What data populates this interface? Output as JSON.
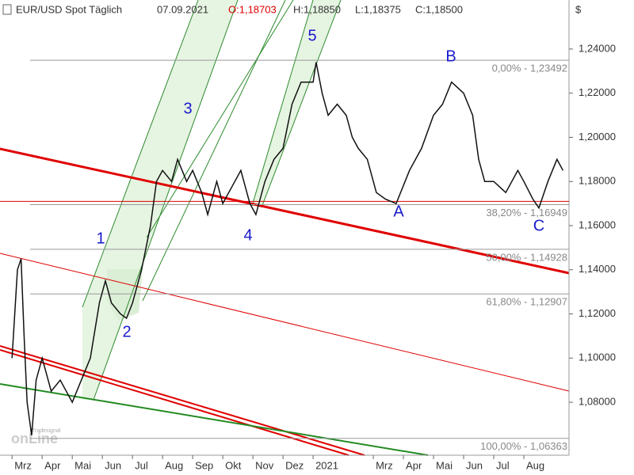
{
  "chart_data": {
    "type": "line",
    "title_parts": [
      "EUR/USD Spot Täglich",
      "07.09.2021",
      "O:1,18703",
      "H:1,18850",
      "L:1,18375",
      "C:1,18500"
    ],
    "currency": "$",
    "x": [
      0,
      0.18,
      0.3,
      0.4,
      0.5,
      0.65,
      0.8,
      1.0,
      1.3,
      1.6,
      2.0,
      2.3,
      2.6,
      2.9,
      3.1,
      3.3,
      3.6,
      3.8,
      4.0,
      4.3,
      4.6,
      4.8,
      5.0,
      5.3,
      5.5,
      5.8,
      6.0,
      6.3,
      6.5,
      6.8,
      7.0,
      7.4,
      7.6,
      7.9,
      8.1,
      8.4,
      8.7,
      9.0,
      9.3,
      9.6,
      10.0,
      10.1,
      10.3,
      10.5,
      10.8,
      11.1,
      11.3,
      11.5,
      11.8,
      12.1,
      12.4,
      12.76,
      13.2,
      13.6,
      14.0,
      14.3,
      14.6,
      15.0,
      15.3,
      15.5,
      15.7,
      16.0,
      16.4,
      16.8,
      17.0,
      17.3,
      17.5,
      17.8,
      18.1,
      18.3
    ],
    "series": [
      {
        "name": "EUR/USD",
        "color": "#111111",
        "values": [
          1.1,
          1.14,
          1.145,
          1.11,
          1.08,
          1.065,
          1.09,
          1.1,
          1.085,
          1.09,
          1.08,
          1.09,
          1.1,
          1.125,
          1.135,
          1.125,
          1.12,
          1.118,
          1.125,
          1.14,
          1.16,
          1.18,
          1.185,
          1.18,
          1.19,
          1.18,
          1.185,
          1.175,
          1.165,
          1.18,
          1.17,
          1.18,
          1.185,
          1.17,
          1.165,
          1.18,
          1.19,
          1.195,
          1.215,
          1.225,
          1.225,
          1.234,
          1.22,
          1.21,
          1.215,
          1.21,
          1.2,
          1.195,
          1.19,
          1.175,
          1.172,
          1.17,
          1.185,
          1.195,
          1.21,
          1.215,
          1.225,
          1.22,
          1.21,
          1.19,
          1.18,
          1.18,
          1.175,
          1.185,
          1.18,
          1.172,
          1.168,
          1.18,
          1.19,
          1.185
        ]
      }
    ],
    "xlim": [
      -0.4,
      18.5
    ],
    "xticks": [
      {
        "value": 0,
        "label": "Mrz"
      },
      {
        "value": 1,
        "label": "Apr"
      },
      {
        "value": 2,
        "label": "Mai"
      },
      {
        "value": 3,
        "label": "Jun"
      },
      {
        "value": 4,
        "label": "Jul"
      },
      {
        "value": 5,
        "label": "Aug"
      },
      {
        "value": 6,
        "label": "Sep"
      },
      {
        "value": 7,
        "label": "Okt"
      },
      {
        "value": 8,
        "label": "Nov"
      },
      {
        "value": 9,
        "label": "Dez"
      },
      {
        "value": 10,
        "label": "2021"
      },
      {
        "value": 12,
        "label": "Mrz"
      },
      {
        "value": 13,
        "label": "Apr"
      },
      {
        "value": 14,
        "label": "Mai"
      },
      {
        "value": 15,
        "label": "Jun"
      },
      {
        "value": 16,
        "label": "Jul"
      },
      {
        "value": 17,
        "label": "Aug"
      }
    ],
    "ylim": [
      1.056,
      1.2622
    ],
    "yticks": [
      {
        "value": 1.08,
        "label": "1,08000"
      },
      {
        "value": 1.1,
        "label": "1,10000"
      },
      {
        "value": 1.12,
        "label": "1,12000"
      },
      {
        "value": 1.14,
        "label": "1,14000"
      },
      {
        "value": 1.16,
        "label": "1,16000"
      },
      {
        "value": 1.18,
        "label": "1,18000"
      },
      {
        "value": 1.2,
        "label": "1,20000"
      },
      {
        "value": 1.22,
        "label": "1,22000"
      },
      {
        "value": 1.24,
        "label": "1,24000"
      }
    ],
    "fib_levels": [
      {
        "value": 1.23492,
        "label": "0,00% - 1,23492"
      },
      {
        "value": 1.16949,
        "label": "38,20% - 1,16949"
      },
      {
        "value": 1.14928,
        "label": "50,00% - 1,14928"
      },
      {
        "value": 1.12907,
        "label": "61,80% - 1,12907"
      },
      {
        "value": 1.06363,
        "label": "100,00% - 1,06363"
      }
    ],
    "support_level": 1.171,
    "wave_labels": [
      "1",
      "2",
      "3",
      "4",
      "5",
      "A",
      "B",
      "C"
    ],
    "logo": [
      "Tradesignal",
      "onLine"
    ]
  }
}
